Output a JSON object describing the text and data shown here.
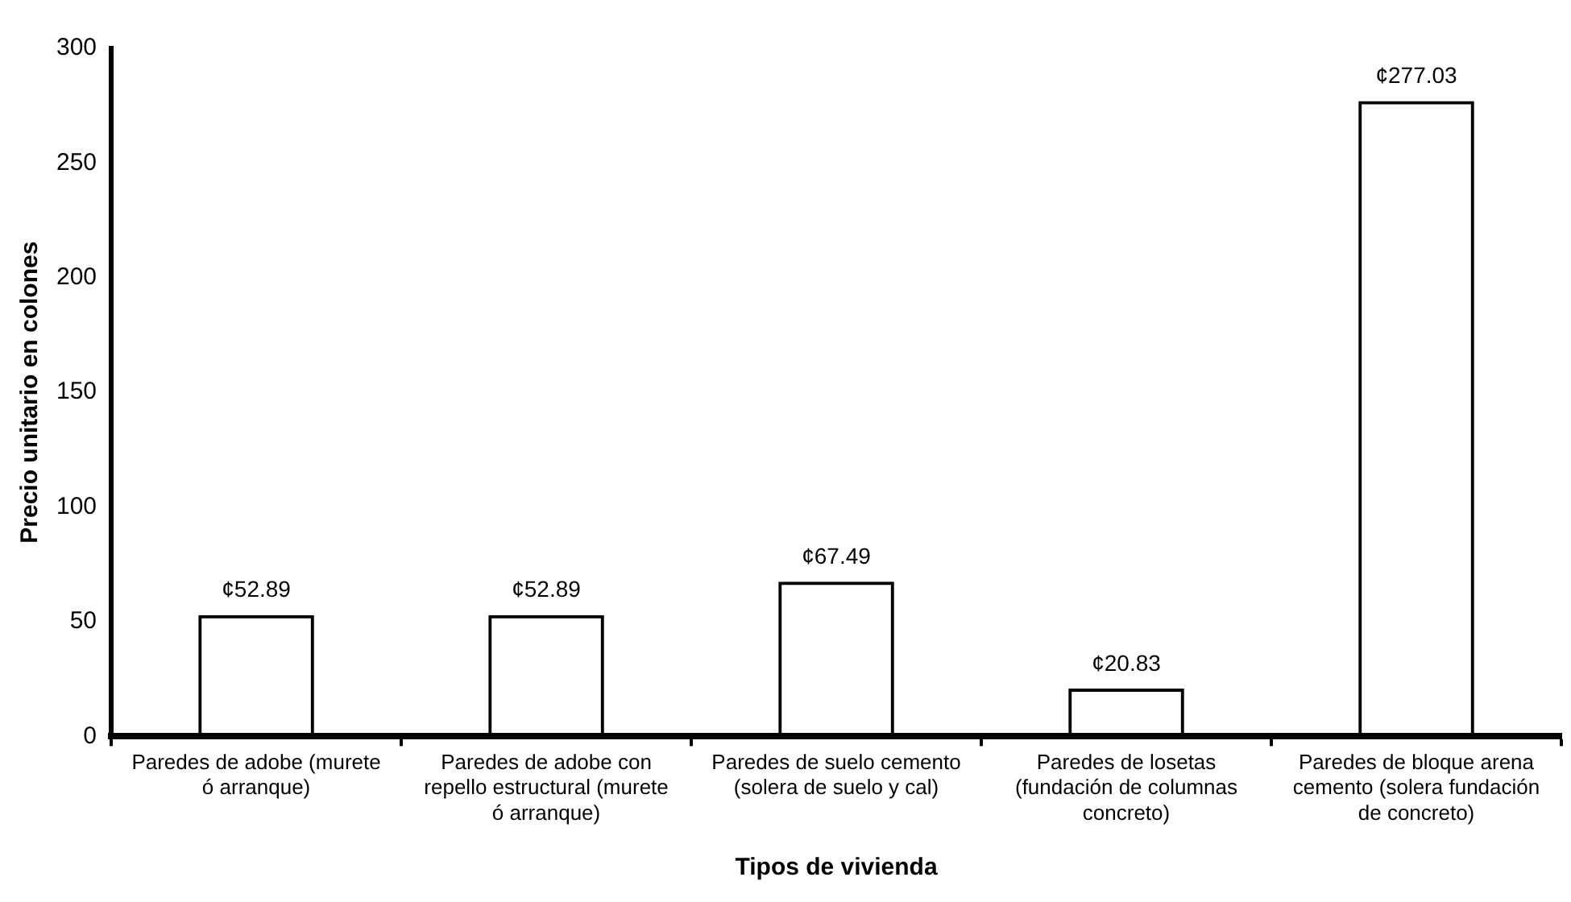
{
  "chart_data": {
    "type": "bar",
    "xlabel": "Tipos de vivienda",
    "ylabel": "Precio unitario en colones",
    "categories": [
      "Paredes de adobe (murete ó arranque)",
      "Paredes de adobe con repello estructural (murete ó arranque)",
      "Paredes de suelo cemento (solera de suelo y cal)",
      "Paredes de losetas (fundación de columnas concreto)",
      "Paredes de bloque arena cemento (solera fundación de concreto)"
    ],
    "values": [
      52.89,
      52.89,
      67.49,
      20.83,
      277.03
    ],
    "value_labels": [
      "¢52.89",
      "¢52.89",
      "¢67.49",
      "¢20.83",
      "¢277.03"
    ],
    "color": "#000000",
    "ylim": [
      0,
      300
    ],
    "yticks": [
      0,
      50,
      100,
      150,
      200,
      250,
      300
    ],
    "grid": false,
    "legend": false
  }
}
